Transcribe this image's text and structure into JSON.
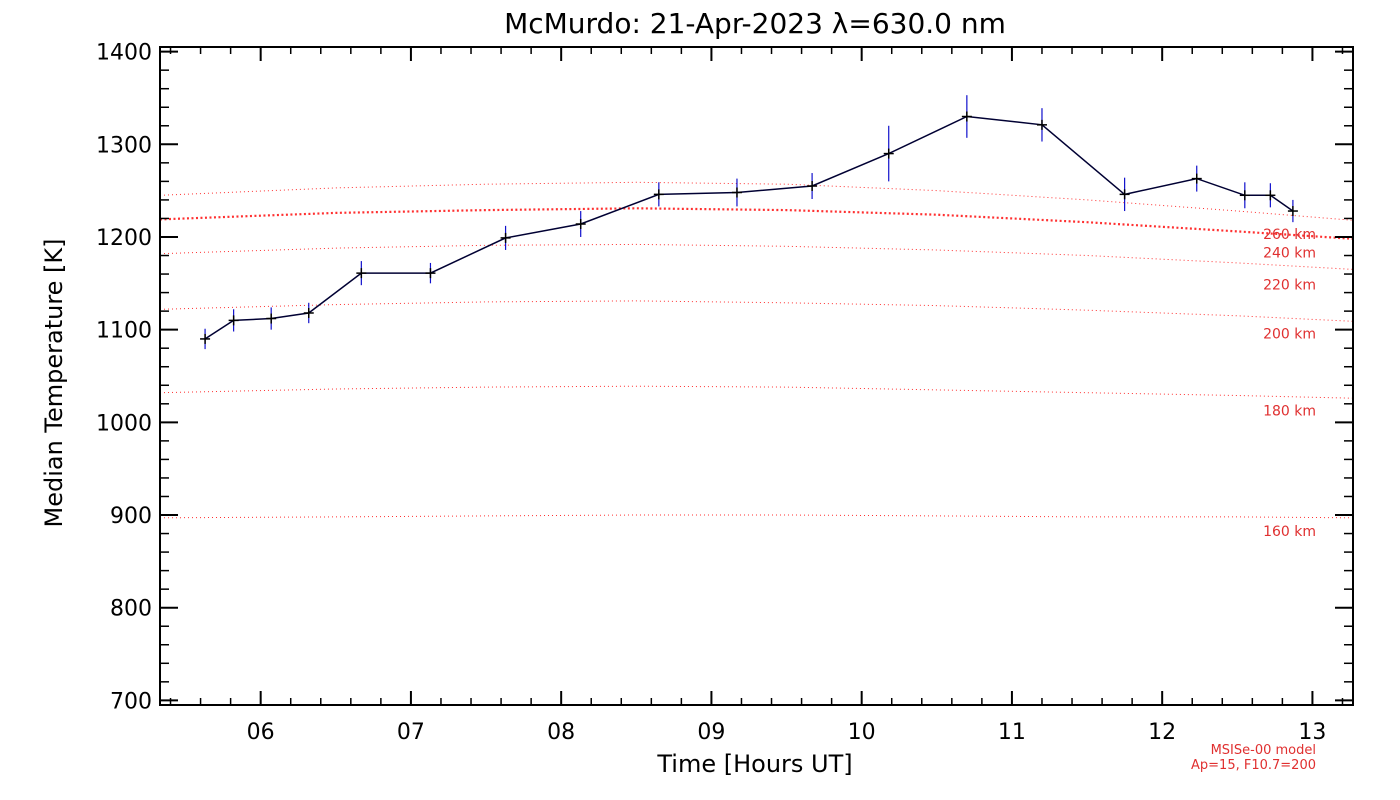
{
  "chart_data": {
    "type": "line",
    "title": "McMurdo: 21-Apr-2023 λ=630.0 nm",
    "xlabel": "Time [Hours UT]",
    "ylabel": "Median Temperature [K]",
    "xlim": [
      5.33,
      13.27
    ],
    "ylim": [
      695,
      1405
    ],
    "x_ticks": [
      6,
      7,
      8,
      9,
      10,
      11,
      12,
      13
    ],
    "x_tick_labels": [
      "06",
      "07",
      "08",
      "09",
      "10",
      "11",
      "12",
      "13"
    ],
    "y_ticks": [
      700,
      800,
      900,
      1000,
      1100,
      1200,
      1300,
      1400
    ],
    "y_tick_labels": [
      "700",
      "800",
      "900",
      "1000",
      "1100",
      "1200",
      "1300",
      "1400"
    ],
    "series": [
      {
        "name": "Median Temperature",
        "color": "#000033",
        "error_color": "#1010cc",
        "x": [
          5.63,
          5.82,
          6.07,
          6.32,
          6.67,
          7.13,
          7.63,
          8.13,
          8.65,
          9.17,
          9.67,
          10.18,
          10.7,
          11.2,
          11.75,
          12.23,
          12.55,
          12.72,
          12.87
        ],
        "y": [
          1090,
          1110,
          1112,
          1118,
          1161,
          1161,
          1199,
          1214,
          1246,
          1248,
          1255,
          1290,
          1330,
          1321,
          1246,
          1263,
          1245,
          1245,
          1228
        ],
        "err": [
          11,
          12,
          12,
          11,
          13,
          11,
          13,
          14,
          13,
          15,
          14,
          30,
          23,
          18,
          18,
          14,
          14,
          13,
          12
        ]
      }
    ],
    "model_curves": [
      {
        "label": "260 km",
        "color": "#ff3030",
        "style": "dotted-bold",
        "x": [
          5.33,
          6.5,
          7.5,
          8.5,
          9.5,
          10.5,
          11.5,
          12.5,
          13.27
        ],
        "y": [
          1219,
          1226,
          1229,
          1231,
          1229,
          1224,
          1216,
          1206,
          1198
        ]
      },
      {
        "label": "240 km",
        "color": "#ff3030",
        "style": "dotted",
        "x": [
          5.33,
          6.5,
          7.5,
          8.5,
          9.5,
          10.5,
          11.5,
          12.5,
          13.27
        ],
        "y": [
          1182,
          1188,
          1191,
          1192,
          1190,
          1186,
          1180,
          1172,
          1165
        ]
      },
      {
        "label": "220 km",
        "color": "#ff3030",
        "style": "dotted",
        "x": [
          5.33,
          6.5,
          7.5,
          8.5,
          9.5,
          10.5,
          11.5,
          12.5,
          13.27
        ],
        "y": [
          1122,
          1127,
          1130,
          1131,
          1129,
          1126,
          1121,
          1115,
          1109
        ]
      },
      {
        "label": "200 km",
        "color": "#ff3030",
        "style": "dotted",
        "x": [
          5.33,
          6.5,
          7.5,
          8.5,
          9.5,
          10.5,
          11.5,
          12.5,
          13.27
        ],
        "y": [
          1032,
          1036,
          1038,
          1039,
          1038,
          1035,
          1032,
          1029,
          1026
        ]
      },
      {
        "label": "180 km",
        "color": "#ff3030",
        "style": "dotted",
        "x": [
          5.33,
          6.5,
          7.5,
          8.5,
          9.5,
          10.5,
          11.5,
          12.5,
          13.27
        ],
        "y": [
          897,
          898,
          899,
          900,
          900,
          899,
          898,
          898,
          897
        ]
      },
      {
        "label": "160 km",
        "color": "#ff3030",
        "style": "dotted",
        "x": [],
        "y": []
      },
      {
        "label": "",
        "color": "#ff3030",
        "style": "dotted",
        "x": [
          5.33,
          6.5,
          7.5,
          8.5,
          9.5,
          10.5,
          11.5,
          12.5,
          13.27
        ],
        "y": [
          1245,
          1253,
          1257,
          1259,
          1257,
          1250,
          1240,
          1228,
          1218
        ]
      }
    ],
    "altitude_labels": [
      {
        "text": "260 km",
        "y": 1203
      },
      {
        "text": "240 km",
        "y": 1183
      },
      {
        "text": "220 km",
        "y": 1149
      },
      {
        "text": "200 km",
        "y": 1096
      },
      {
        "text": "180 km",
        "y": 1013
      },
      {
        "text": "160 km",
        "y": 883
      }
    ],
    "model_note_line1": "MSISe-00 model",
    "model_note_line2": "Ap=15, F10.7=200"
  }
}
